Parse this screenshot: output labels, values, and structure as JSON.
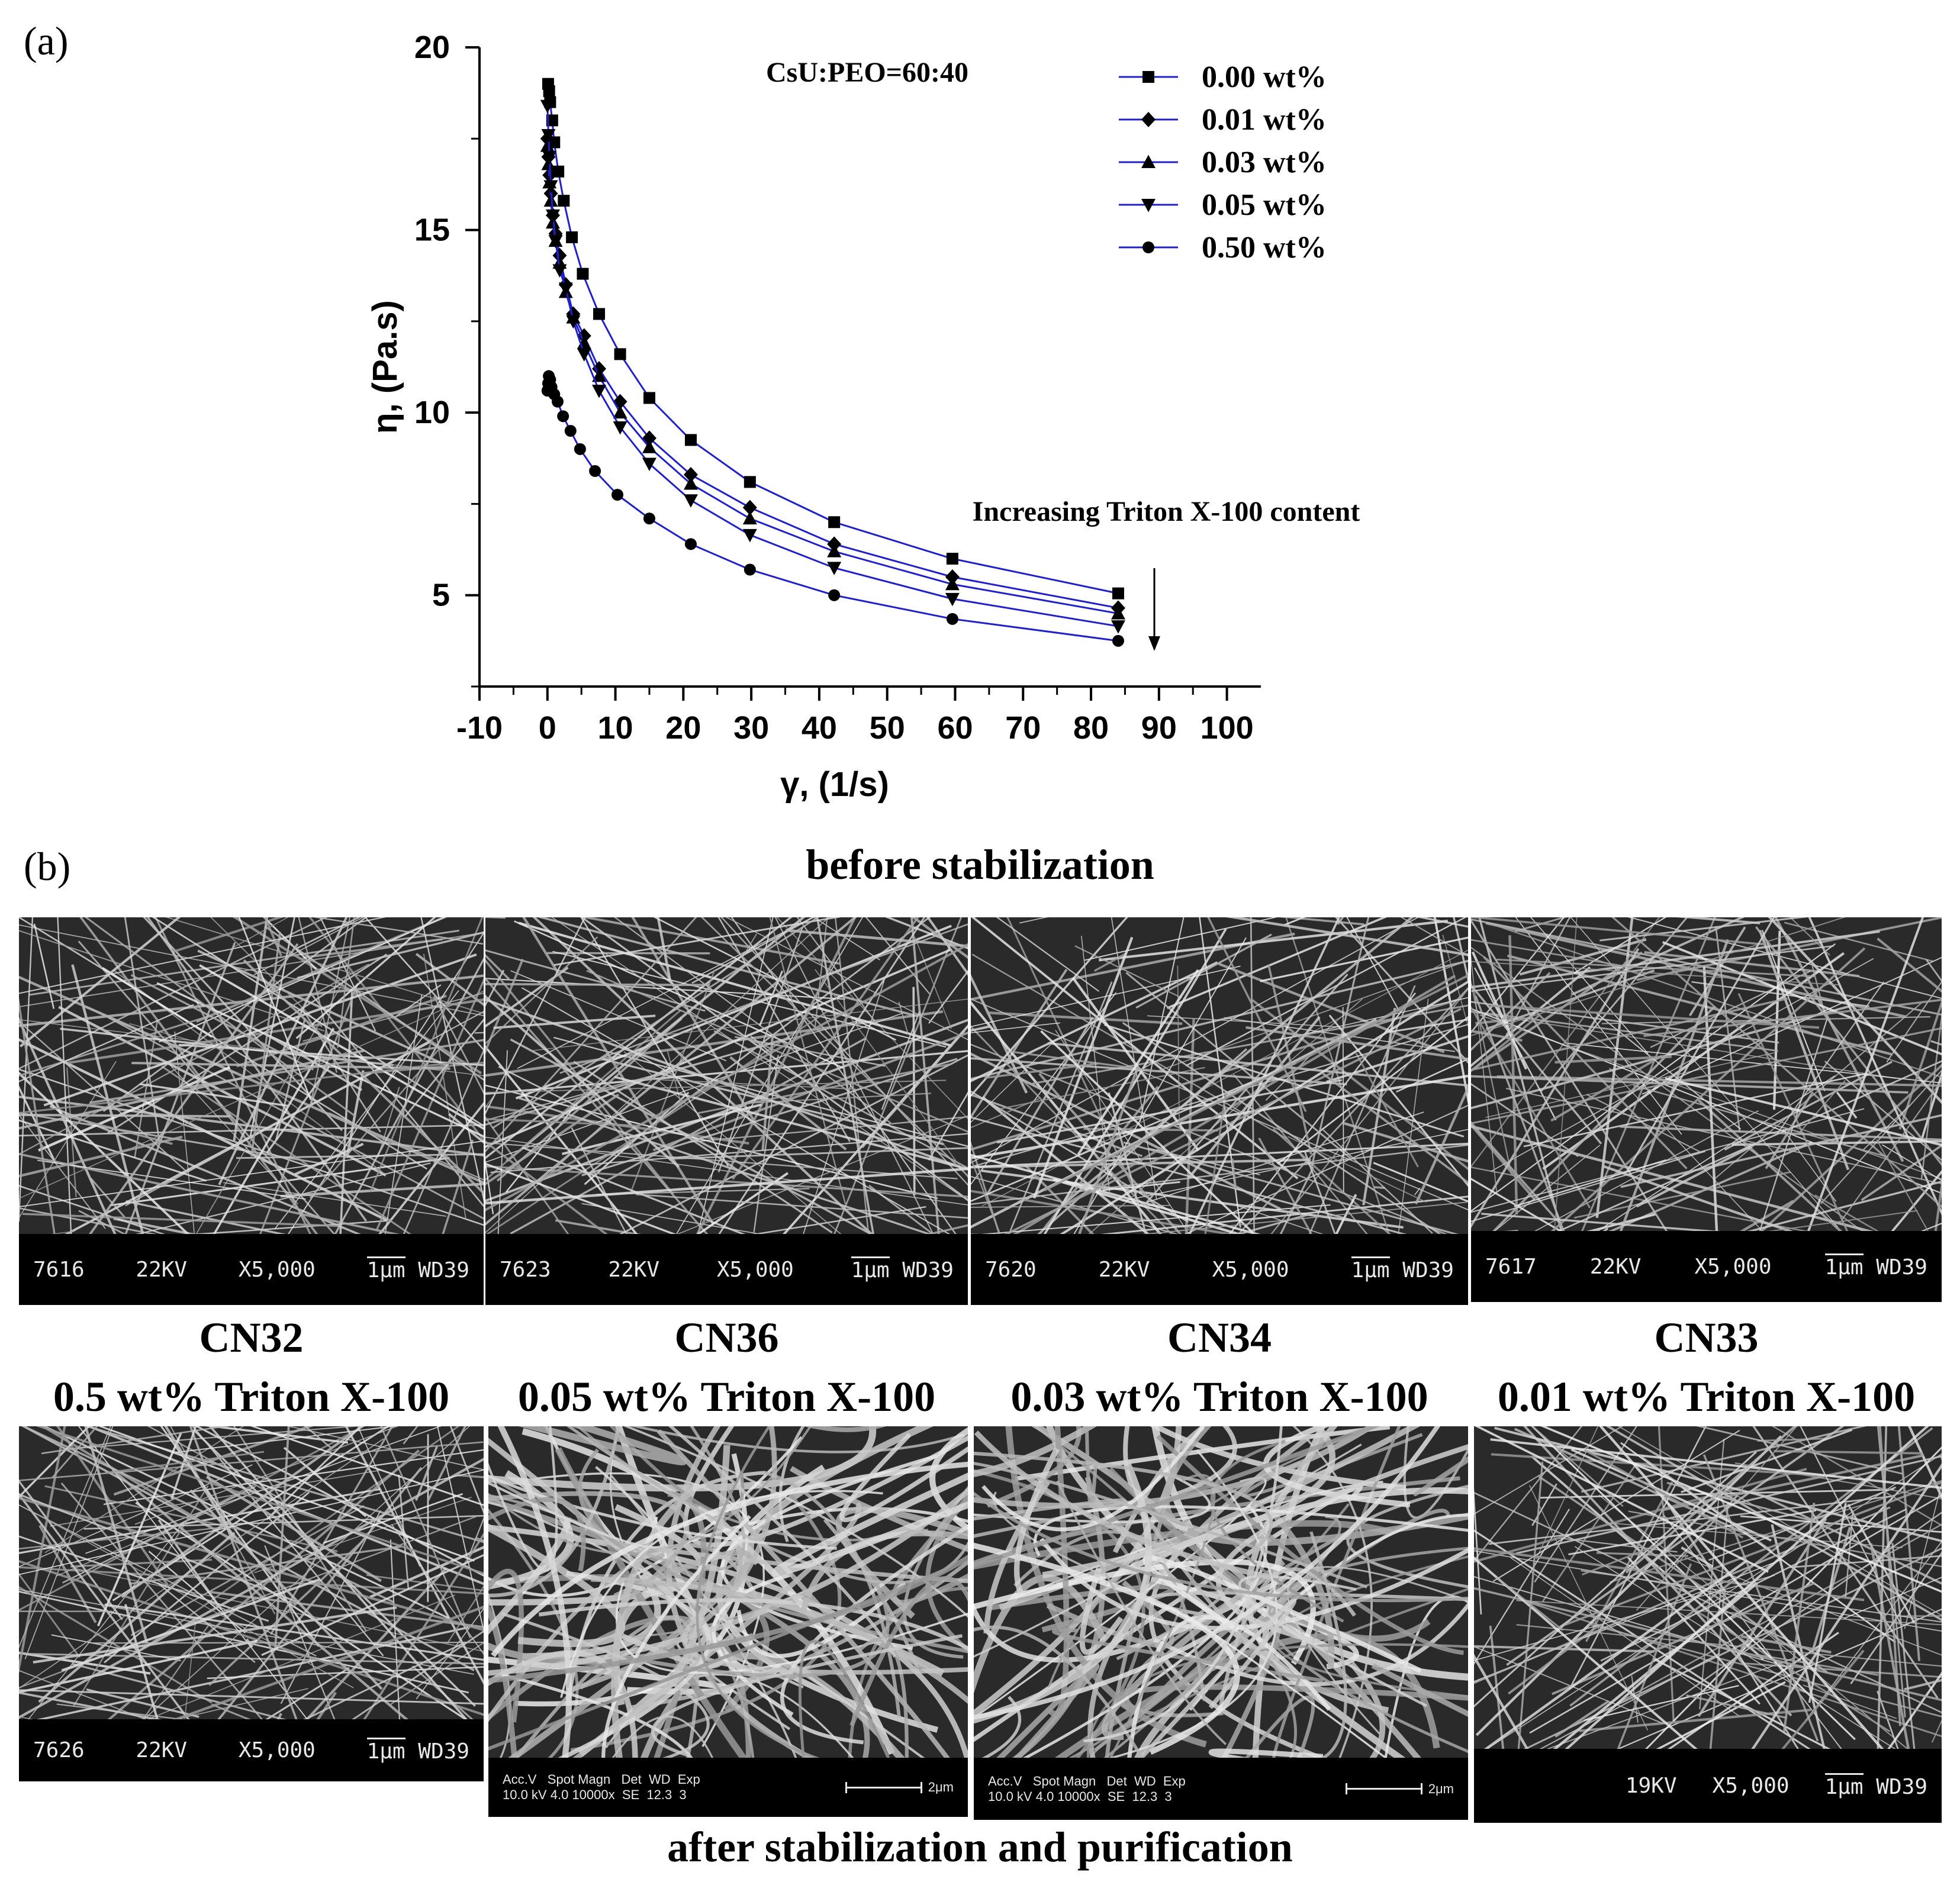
{
  "panel_a_label": "(a)",
  "panel_b_label": "(b)",
  "chart_data": {
    "type": "line",
    "title": "CsU:PEO=60:40",
    "xlabel": "γ, (1/s)",
    "ylabel": "η, (Pa.s)",
    "xlim": [
      -10,
      105
    ],
    "ylim": [
      2.5,
      20
    ],
    "xticks": [
      "-10",
      "0",
      "10",
      "20",
      "30",
      "40",
      "50",
      "60",
      "70",
      "80",
      "90",
      "100"
    ],
    "yticks": [
      "5",
      "10",
      "15",
      "20"
    ],
    "legend_position": "top-right",
    "annotation": "Increasing Triton X-100 content",
    "grid": false,
    "line_color": "#2020c8",
    "x": [
      0.1,
      0.2,
      0.3,
      0.5,
      0.7,
      1.0,
      1.5,
      2.1,
      3.0,
      4.2,
      5.9,
      8.4,
      11.8,
      16.6,
      23.4,
      33.0,
      46.4,
      65.5,
      84.0
    ],
    "series": [
      {
        "name": "0.00 wt%",
        "marker": "square",
        "points": [
          [
            0.1,
            19.0
          ],
          [
            0.25,
            18.8
          ],
          [
            0.4,
            18.5
          ],
          [
            0.7,
            18.0
          ],
          [
            1.0,
            17.4
          ],
          [
            1.6,
            16.6
          ],
          [
            2.4,
            15.8
          ],
          [
            3.6,
            14.8
          ],
          [
            5.2,
            13.8
          ],
          [
            7.6,
            12.7
          ],
          [
            10.7,
            11.6
          ],
          [
            15.0,
            10.4
          ],
          [
            21.1,
            9.25
          ],
          [
            29.8,
            8.1
          ],
          [
            42.2,
            7.0
          ],
          [
            59.6,
            6.0
          ],
          [
            84.0,
            5.05
          ]
        ]
      },
      {
        "name": "0.01 wt%",
        "marker": "diamond",
        "points": [
          [
            0.0,
            17.5
          ],
          [
            0.15,
            17.0
          ],
          [
            0.3,
            16.5
          ],
          [
            0.5,
            16.0
          ],
          [
            0.8,
            15.4
          ],
          [
            1.2,
            14.9
          ],
          [
            1.8,
            14.3
          ],
          [
            2.7,
            13.5
          ],
          [
            3.8,
            12.7
          ],
          [
            5.4,
            12.1
          ],
          [
            7.6,
            11.2
          ],
          [
            10.7,
            10.3
          ],
          [
            15.0,
            9.3
          ],
          [
            21.1,
            8.3
          ],
          [
            29.8,
            7.4
          ],
          [
            42.2,
            6.4
          ],
          [
            59.6,
            5.5
          ],
          [
            84.0,
            4.65
          ]
        ]
      },
      {
        "name": "0.03 wt%",
        "marker": "triangle-up",
        "points": [
          [
            0.0,
            17.3
          ],
          [
            0.15,
            16.8
          ],
          [
            0.3,
            16.3
          ],
          [
            0.5,
            15.8
          ],
          [
            0.8,
            15.2
          ],
          [
            1.2,
            14.7
          ],
          [
            1.8,
            14.1
          ],
          [
            2.7,
            13.3
          ],
          [
            3.8,
            12.6
          ],
          [
            5.4,
            11.9
          ],
          [
            7.6,
            11.0
          ],
          [
            10.7,
            10.0
          ],
          [
            15.0,
            9.05
          ],
          [
            21.1,
            8.05
          ],
          [
            29.8,
            7.1
          ],
          [
            42.2,
            6.2
          ],
          [
            59.6,
            5.3
          ],
          [
            84.0,
            4.5
          ]
        ]
      },
      {
        "name": "0.05 wt%",
        "marker": "triangle-down",
        "points": [
          [
            0.0,
            18.4
          ],
          [
            0.15,
            17.6
          ],
          [
            0.3,
            17.0
          ],
          [
            0.5,
            16.2
          ],
          [
            0.8,
            15.4
          ],
          [
            1.2,
            14.7
          ],
          [
            1.8,
            13.9
          ],
          [
            2.7,
            13.4
          ],
          [
            3.8,
            12.5
          ],
          [
            5.4,
            11.6
          ],
          [
            7.6,
            10.6
          ],
          [
            10.7,
            9.6
          ],
          [
            15.0,
            8.6
          ],
          [
            21.1,
            7.6
          ],
          [
            29.8,
            6.65
          ],
          [
            42.2,
            5.75
          ],
          [
            59.6,
            4.9
          ],
          [
            84.0,
            4.15
          ]
        ]
      },
      {
        "name": "0.50 wt%",
        "marker": "circle",
        "points": [
          [
            0.0,
            10.6
          ],
          [
            0.1,
            10.8
          ],
          [
            0.2,
            11.0
          ],
          [
            0.4,
            10.9
          ],
          [
            0.6,
            10.7
          ],
          [
            1.0,
            10.5
          ],
          [
            1.5,
            10.3
          ],
          [
            2.3,
            9.9
          ],
          [
            3.4,
            9.5
          ],
          [
            4.8,
            9.0
          ],
          [
            7.0,
            8.4
          ],
          [
            10.3,
            7.75
          ],
          [
            15.0,
            7.1
          ],
          [
            21.1,
            6.4
          ],
          [
            29.8,
            5.7
          ],
          [
            42.2,
            5.0
          ],
          [
            59.6,
            4.35
          ],
          [
            84.0,
            3.75
          ]
        ]
      }
    ]
  },
  "section_titles": {
    "before": "before stabilization",
    "after": "after stabilization and purification"
  },
  "captions": [
    {
      "code": "CN32",
      "desc": "0.5 wt% Triton X-100"
    },
    {
      "code": "CN36",
      "desc": "0.05 wt% Triton X-100"
    },
    {
      "code": "CN34",
      "desc": "0.03 wt% Triton X-100"
    },
    {
      "code": "CN33",
      "desc": "0.01 wt% Triton X-100"
    }
  ],
  "sem_before": [
    {
      "id": "7616",
      "kv": "22KV",
      "mag": "X5,000",
      "scale": "1μm",
      "wd": "WD39"
    },
    {
      "id": "7623",
      "kv": "22KV",
      "mag": "X5,000",
      "scale": "1μm",
      "wd": "WD39"
    },
    {
      "id": "7620",
      "kv": "22KV",
      "mag": "X5,000",
      "scale": "1μm",
      "wd": "WD39"
    },
    {
      "id": "7617",
      "kv": "22KV",
      "mag": "X5,000",
      "scale": "1μm",
      "wd": "WD39"
    }
  ],
  "sem_after": [
    {
      "id": "7626",
      "kv": "22KV",
      "mag": "X5,000",
      "scale": "1μm",
      "wd": "WD39"
    },
    {
      "header": "Acc.V   Spot Magn   Det  WD  Exp",
      "values": "10.0 kV 4.0 10000x  SE  12.3  3",
      "scale": "2μm"
    },
    {
      "header": "Acc.V   Spot Magn   Det  WD  Exp",
      "values": "10.0 kV 4.0 10000x  SE  12.3  3",
      "scale": "2μm"
    },
    {
      "id": "",
      "kv": "19KV",
      "mag": "X5,000",
      "scale": "1μm",
      "wd": "WD39"
    }
  ]
}
